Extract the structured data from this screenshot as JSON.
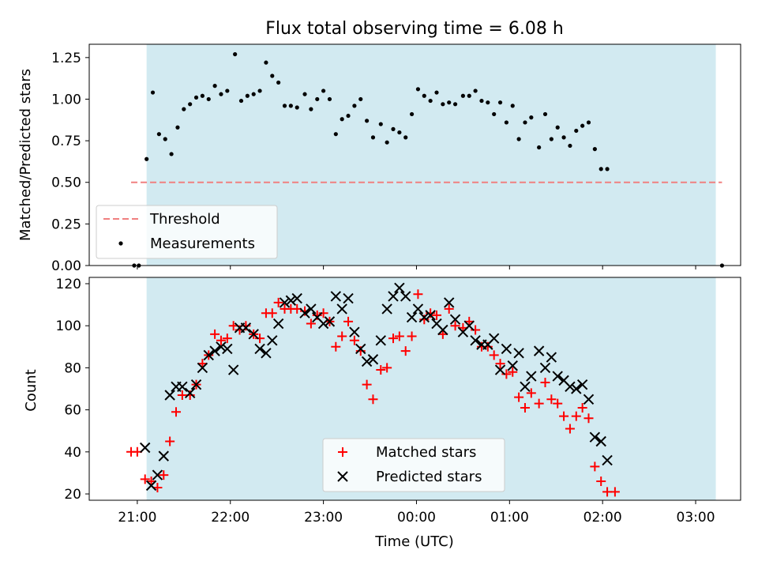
{
  "chart_data": [
    {
      "type": "scatter",
      "title": "Flux total observing time = 6.08 h",
      "ylabel": "Matched/Predicted stars",
      "xlabel": "",
      "ylim": [
        0,
        1.33
      ],
      "yticks": [
        "0.00",
        "0.25",
        "0.50",
        "0.75",
        "1.00",
        "1.25"
      ],
      "ytick_values": [
        0,
        0.25,
        0.5,
        0.75,
        1.0,
        1.25
      ],
      "shaded_interval": [
        "21:06",
        "03:13"
      ],
      "shade_color": "#add8e6",
      "threshold": {
        "name": "Threshold",
        "value": 0.5,
        "x_start": "20:56",
        "x_end": "03:17",
        "color": "#f08080",
        "style": "dashed"
      },
      "series": [
        {
          "name": "Measurements",
          "marker": "dot",
          "color": "#000000",
          "points": [
            [
              "20:58",
              0.0
            ],
            [
              "21:01",
              0.0
            ],
            [
              "21:06",
              0.64
            ],
            [
              "21:10",
              1.04
            ],
            [
              "21:14",
              0.79
            ],
            [
              "21:18",
              0.76
            ],
            [
              "21:22",
              0.67
            ],
            [
              "21:26",
              0.83
            ],
            [
              "21:30",
              0.94
            ],
            [
              "21:34",
              0.97
            ],
            [
              "21:38",
              1.01
            ],
            [
              "21:42",
              1.02
            ],
            [
              "21:46",
              1.0
            ],
            [
              "21:50",
              1.08
            ],
            [
              "21:54",
              1.03
            ],
            [
              "21:58",
              1.05
            ],
            [
              "22:03",
              1.27
            ],
            [
              "22:07",
              0.99
            ],
            [
              "22:11",
              1.02
            ],
            [
              "22:15",
              1.03
            ],
            [
              "22:19",
              1.05
            ],
            [
              "22:23",
              1.22
            ],
            [
              "22:27",
              1.14
            ],
            [
              "22:31",
              1.1
            ],
            [
              "22:35",
              0.96
            ],
            [
              "22:39",
              0.96
            ],
            [
              "22:43",
              0.95
            ],
            [
              "22:48",
              1.03
            ],
            [
              "22:52",
              0.94
            ],
            [
              "22:56",
              1.0
            ],
            [
              "23:00",
              1.05
            ],
            [
              "23:04",
              1.0
            ],
            [
              "23:08",
              0.79
            ],
            [
              "23:12",
              0.88
            ],
            [
              "23:16",
              0.9
            ],
            [
              "23:20",
              0.96
            ],
            [
              "23:24",
              1.0
            ],
            [
              "23:28",
              0.87
            ],
            [
              "23:32",
              0.77
            ],
            [
              "23:37",
              0.85
            ],
            [
              "23:41",
              0.74
            ],
            [
              "23:45",
              0.82
            ],
            [
              "23:49",
              0.8
            ],
            [
              "23:53",
              0.77
            ],
            [
              "23:57",
              0.91
            ],
            [
              "00:01",
              1.06
            ],
            [
              "00:05",
              1.02
            ],
            [
              "00:09",
              0.99
            ],
            [
              "00:13",
              1.04
            ],
            [
              "00:17",
              0.97
            ],
            [
              "00:21",
              0.98
            ],
            [
              "00:25",
              0.97
            ],
            [
              "00:30",
              1.02
            ],
            [
              "00:34",
              1.02
            ],
            [
              "00:38",
              1.05
            ],
            [
              "00:42",
              0.99
            ],
            [
              "00:46",
              0.98
            ],
            [
              "00:50",
              0.91
            ],
            [
              "00:54",
              0.98
            ],
            [
              "00:58",
              0.86
            ],
            [
              "01:02",
              0.96
            ],
            [
              "01:06",
              0.76
            ],
            [
              "01:10",
              0.86
            ],
            [
              "01:14",
              0.89
            ],
            [
              "01:19",
              0.71
            ],
            [
              "01:23",
              0.91
            ],
            [
              "01:27",
              0.76
            ],
            [
              "01:31",
              0.83
            ],
            [
              "01:35",
              0.77
            ],
            [
              "01:39",
              0.72
            ],
            [
              "01:43",
              0.81
            ],
            [
              "01:47",
              0.84
            ],
            [
              "01:51",
              0.86
            ],
            [
              "01:55",
              0.7
            ],
            [
              "01:59",
              0.58
            ],
            [
              "02:03",
              0.58
            ],
            [
              "03:17",
              0.0
            ]
          ]
        }
      ],
      "legend": {
        "position": "lower-left",
        "entries": [
          "Threshold",
          "Measurements"
        ]
      }
    },
    {
      "type": "scatter",
      "title": "",
      "ylabel": "Count",
      "xlabel": "Time (UTC)",
      "ylim": [
        17,
        123
      ],
      "yticks": [
        "20",
        "40",
        "60",
        "80",
        "100",
        "120"
      ],
      "ytick_values": [
        20,
        40,
        60,
        80,
        100,
        120
      ],
      "xlim": [
        "20:29",
        "03:29"
      ],
      "xticks": [
        "21:00",
        "22:00",
        "23:00",
        "00:00",
        "01:00",
        "02:00",
        "03:00"
      ],
      "shaded_interval": [
        "21:06",
        "03:13"
      ],
      "shade_color": "#add8e6",
      "series": [
        {
          "name": "Matched stars",
          "marker": "plus",
          "color": "#ff0000",
          "points": [
            [
              "20:56",
              40
            ],
            [
              "21:00",
              40
            ],
            [
              "21:05",
              27
            ],
            [
              "21:09",
              26
            ],
            [
              "21:13",
              23
            ],
            [
              "21:17",
              29
            ],
            [
              "21:21",
              45
            ],
            [
              "21:25",
              59
            ],
            [
              "21:29",
              67
            ],
            [
              "21:34",
              67
            ],
            [
              "21:38",
              72
            ],
            [
              "21:42",
              82
            ],
            [
              "21:46",
              86
            ],
            [
              "21:50",
              96
            ],
            [
              "21:54",
              93
            ],
            [
              "21:58",
              94
            ],
            [
              "22:02",
              100
            ],
            [
              "22:06",
              98
            ],
            [
              "22:10",
              100
            ],
            [
              "22:15",
              96
            ],
            [
              "22:19",
              94
            ],
            [
              "22:23",
              106
            ],
            [
              "22:27",
              106
            ],
            [
              "22:31",
              111
            ],
            [
              "22:35",
              108
            ],
            [
              "22:39",
              108
            ],
            [
              "22:43",
              108
            ],
            [
              "22:48",
              107
            ],
            [
              "22:52",
              101
            ],
            [
              "22:56",
              105
            ],
            [
              "23:00",
              106
            ],
            [
              "23:04",
              102
            ],
            [
              "23:08",
              90
            ],
            [
              "23:12",
              95
            ],
            [
              "23:16",
              102
            ],
            [
              "23:20",
              93
            ],
            [
              "23:24",
              88
            ],
            [
              "23:28",
              72
            ],
            [
              "23:32",
              65
            ],
            [
              "23:37",
              79
            ],
            [
              "23:41",
              80
            ],
            [
              "23:45",
              94
            ],
            [
              "23:49",
              95
            ],
            [
              "23:53",
              88
            ],
            [
              "23:57",
              95
            ],
            [
              "00:01",
              115
            ],
            [
              "00:05",
              103
            ],
            [
              "00:09",
              106
            ],
            [
              "00:13",
              105
            ],
            [
              "00:17",
              96
            ],
            [
              "00:21",
              108
            ],
            [
              "00:25",
              100
            ],
            [
              "00:30",
              99
            ],
            [
              "00:34",
              102
            ],
            [
              "00:38",
              98
            ],
            [
              "00:42",
              90
            ],
            [
              "00:46",
              90
            ],
            [
              "00:50",
              86
            ],
            [
              "00:54",
              82
            ],
            [
              "00:58",
              77
            ],
            [
              "01:02",
              78
            ],
            [
              "01:06",
              66
            ],
            [
              "01:10",
              61
            ],
            [
              "01:14",
              68
            ],
            [
              "01:19",
              63
            ],
            [
              "01:23",
              73
            ],
            [
              "01:27",
              65
            ],
            [
              "01:31",
              63
            ],
            [
              "01:35",
              57
            ],
            [
              "01:39",
              51
            ],
            [
              "01:43",
              57
            ],
            [
              "01:47",
              61
            ],
            [
              "01:51",
              56
            ],
            [
              "01:55",
              33
            ],
            [
              "01:59",
              26
            ],
            [
              "02:03",
              21
            ],
            [
              "02:08",
              21
            ]
          ]
        },
        {
          "name": "Predicted stars",
          "marker": "x",
          "color": "#000000",
          "points": [
            [
              "21:05",
              42
            ],
            [
              "21:09",
              24
            ],
            [
              "21:13",
              29
            ],
            [
              "21:17",
              38
            ],
            [
              "21:21",
              67
            ],
            [
              "21:25",
              71
            ],
            [
              "21:29",
              71
            ],
            [
              "21:34",
              68
            ],
            [
              "21:38",
              72
            ],
            [
              "21:42",
              80
            ],
            [
              "21:46",
              86
            ],
            [
              "21:50",
              88
            ],
            [
              "21:54",
              90
            ],
            [
              "21:58",
              89
            ],
            [
              "22:02",
              79
            ],
            [
              "22:06",
              99
            ],
            [
              "22:10",
              99
            ],
            [
              "22:15",
              96
            ],
            [
              "22:19",
              89
            ],
            [
              "22:23",
              87
            ],
            [
              "22:27",
              93
            ],
            [
              "22:31",
              101
            ],
            [
              "22:35",
              111
            ],
            [
              "22:39",
              112
            ],
            [
              "22:43",
              113
            ],
            [
              "22:48",
              106
            ],
            [
              "22:52",
              108
            ],
            [
              "22:56",
              104
            ],
            [
              "23:00",
              101
            ],
            [
              "23:04",
              102
            ],
            [
              "23:08",
              114
            ],
            [
              "23:12",
              108
            ],
            [
              "23:16",
              113
            ],
            [
              "23:20",
              97
            ],
            [
              "23:24",
              89
            ],
            [
              "23:28",
              83
            ],
            [
              "23:32",
              84
            ],
            [
              "23:37",
              93
            ],
            [
              "23:41",
              108
            ],
            [
              "23:45",
              114
            ],
            [
              "23:49",
              118
            ],
            [
              "23:53",
              114
            ],
            [
              "23:57",
              104
            ],
            [
              "00:01",
              108
            ],
            [
              "00:05",
              104
            ],
            [
              "00:09",
              105
            ],
            [
              "00:13",
              101
            ],
            [
              "00:17",
              98
            ],
            [
              "00:21",
              111
            ],
            [
              "00:25",
              103
            ],
            [
              "00:30",
              97
            ],
            [
              "00:34",
              100
            ],
            [
              "00:38",
              93
            ],
            [
              "00:42",
              91
            ],
            [
              "00:46",
              91
            ],
            [
              "00:50",
              94
            ],
            [
              "00:54",
              79
            ],
            [
              "00:58",
              89
            ],
            [
              "01:02",
              81
            ],
            [
              "01:06",
              87
            ],
            [
              "01:10",
              71
            ],
            [
              "01:14",
              76
            ],
            [
              "01:19",
              88
            ],
            [
              "01:23",
              80
            ],
            [
              "01:27",
              85
            ],
            [
              "01:31",
              76
            ],
            [
              "01:35",
              74
            ],
            [
              "01:39",
              71
            ],
            [
              "01:43",
              70
            ],
            [
              "01:47",
              72
            ],
            [
              "01:51",
              65
            ],
            [
              "01:55",
              47
            ],
            [
              "01:59",
              45
            ],
            [
              "02:03",
              36
            ]
          ]
        }
      ],
      "legend": {
        "position": "lower-center",
        "entries": [
          "Matched stars",
          "Predicted stars"
        ]
      }
    }
  ]
}
